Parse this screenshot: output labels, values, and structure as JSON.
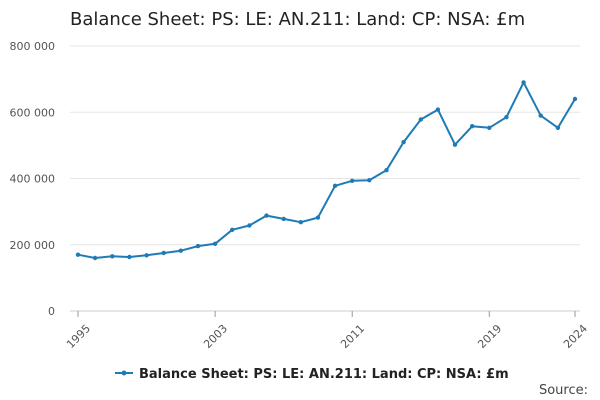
{
  "chart_data": {
    "type": "line",
    "title": "Balance Sheet: PS: LE: AN.211: Land: CP: NSA: £m",
    "xlabel": "",
    "ylabel": "",
    "xlim": [
      1995,
      2024
    ],
    "ylim": [
      0,
      800000
    ],
    "yticks": [
      0,
      200000,
      400000,
      600000,
      800000
    ],
    "ytick_labels": [
      "0",
      "200 000",
      "400 000",
      "600 000",
      "800 000"
    ],
    "xticks": [
      1995,
      2003,
      2011,
      2019,
      2024
    ],
    "xtick_labels": [
      "1995",
      "2003",
      "2011",
      "2019",
      "2024"
    ],
    "grid": true,
    "legend_position": "bottom-center",
    "series": [
      {
        "name": "Balance Sheet: PS: LE: AN.211: Land: CP: NSA: £m",
        "color": "#1f7bb6",
        "x": [
          1995,
          1996,
          1997,
          1998,
          1999,
          2000,
          2001,
          2002,
          2003,
          2004,
          2005,
          2006,
          2007,
          2008,
          2009,
          2010,
          2011,
          2012,
          2013,
          2014,
          2015,
          2016,
          2017,
          2018,
          2019,
          2020,
          2021,
          2022,
          2023,
          2024
        ],
        "values": [
          170000,
          160000,
          165000,
          163000,
          168000,
          175000,
          182000,
          196000,
          203000,
          245000,
          258000,
          288000,
          278000,
          268000,
          282000,
          378000,
          393000,
          395000,
          425000,
          510000,
          578000,
          608000,
          502000,
          558000,
          553000,
          585000,
          690000,
          590000,
          553000,
          640000
        ]
      }
    ],
    "source_label": "Source:"
  }
}
